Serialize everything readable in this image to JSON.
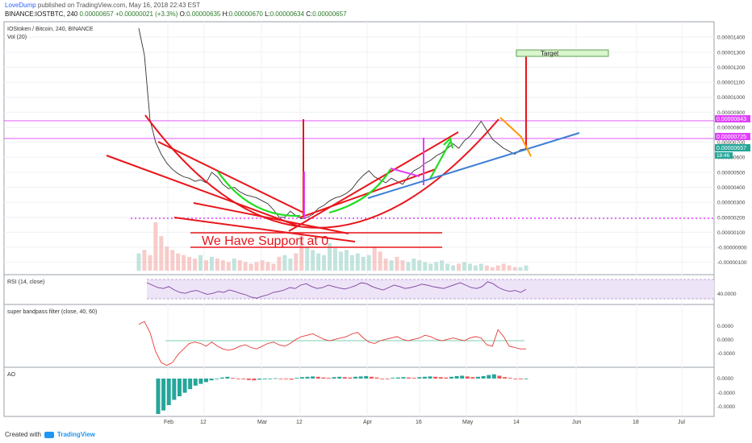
{
  "header": {
    "author": "LoveDump",
    "published_text": "published on TradingView.com, May 16, 2018 22:43 EST",
    "symbol": "BINANCE:IOSTBTC, 240",
    "last": "0.00000657",
    "change": "+0.00000021 (+3.3%)",
    "o_label": "O:",
    "o_value": "0.00000635",
    "h_label": "H:",
    "h_value": "0.00000670",
    "l_label": "L:",
    "l_value": "0.00000634",
    "c_label": "C:",
    "c_value": "0.00000657"
  },
  "main_pane": {
    "title": "IOStoken / Bitcoin, 240, BINANCE",
    "volume_label": "Vol (20)"
  },
  "annotations": {
    "target": "Target",
    "support": "We Have Support at 0"
  },
  "price_badges": {
    "upper": "0.00000843",
    "middle": "0.00000725",
    "last": "0.00000657",
    "countdown": "18:46"
  },
  "rsi_pane": {
    "title": "RSI (14, close)",
    "tick": "40.0000"
  },
  "bandpass_pane": {
    "title": "super bandpass filter (close, 40, 60)"
  },
  "ao_pane": {
    "title": "AO"
  },
  "footer": {
    "created_with": "Created with",
    "brand": "TradingView"
  },
  "colors": {
    "up": "#26a69a",
    "down": "#ef5350",
    "annotation_red": "#e8161b",
    "magenta": "#e040fb",
    "blue_trend": "#3d7fd6",
    "green_arrow": "#22dd22",
    "orange": "#ff9800",
    "rsi_line": "#7e3fa0",
    "bandpass": "#e53935"
  },
  "chart_data": [
    {
      "type": "line",
      "title": "IOStoken / Bitcoin, 240, BINANCE",
      "xlabel": "",
      "ylabel": "",
      "x_ticks": [
        "Feb",
        "12",
        "Mar",
        "12",
        "Apr",
        "16",
        "May",
        "14",
        "Jun",
        "18",
        "Jul"
      ],
      "y_ticks": [
        "0.00001400",
        "0.00001300",
        "0.00001200",
        "0.00001100",
        "0.00001000",
        "0.00000900",
        "0.00000800",
        "0.00000700",
        "0.00000600",
        "0.00000500",
        "0.00000400",
        "0.00000300",
        "0.00000200",
        "0.00000100",
        "-0.00000000",
        "-0.00000100"
      ],
      "ylim": [
        -1.5e-06,
        1.46e-05
      ],
      "grid": true,
      "series": [
        {
          "values": [
            1.46e-05,
            1.28e-05,
            8.5e-06,
            7e-06,
            6.2e-06,
            5.6e-06,
            5.2e-06,
            4.9e-06,
            4.7e-06,
            4.6e-06,
            4.4e-06,
            4.5e-06,
            4.3e-06,
            5e-06,
            4.7e-06,
            4.2e-06,
            3.9e-06,
            4e-06,
            3.7e-06,
            3.5e-06,
            3.4e-06,
            3.3e-06,
            3.1e-06,
            2.9e-06,
            2.5e-06,
            2e-06,
            2e-06,
            2.4e-06,
            2.1e-06,
            1.9e-06,
            2e-06,
            2.2e-06,
            2.6e-06,
            2.8e-06,
            3.1e-06,
            3.3e-06,
            3.4e-06,
            3.6e-06,
            3.9e-06,
            4.4e-06,
            4.8e-06,
            5.1e-06,
            4.7e-06,
            4.5e-06,
            4.3e-06,
            4.6e-06,
            4.4e-06,
            4.2e-06,
            4.7e-06,
            5.1e-06,
            5.3e-06,
            5.6e-06,
            5.8e-06,
            6.1e-06,
            6.3e-06,
            6.6e-06,
            6.9e-06,
            6.6e-06,
            7.1e-06,
            7.4e-06,
            7.9e-06,
            8.4e-06,
            7.8e-06,
            7.2e-06,
            6.9e-06,
            6.6e-06,
            6.4e-06,
            6.2e-06,
            6.5e-06,
            6.57e-06
          ]
        }
      ],
      "horizontal_lines": [
        8.43e-06,
        7.25e-06,
        1.9e-06
      ],
      "volume": [
        10,
        12,
        9,
        28,
        20,
        14,
        12,
        10,
        9,
        8,
        7,
        9,
        6,
        8,
        7,
        6,
        5,
        7,
        6,
        5,
        4,
        5,
        6,
        5,
        4,
        8,
        9,
        7,
        10,
        22,
        14,
        12,
        10,
        9,
        16,
        13,
        11,
        12,
        9,
        10,
        8,
        9,
        14,
        11,
        7,
        6,
        8,
        6,
        5,
        7,
        6,
        5,
        4,
        5,
        6,
        4,
        3,
        4,
        5,
        4,
        3,
        4,
        3,
        2,
        3,
        4,
        3,
        2,
        2,
        3
      ]
    },
    {
      "type": "line",
      "title": "RSI (14, close)",
      "y_ticks": [
        "40.0000"
      ],
      "series": [
        {
          "values": [
            60,
            55,
            50,
            48,
            52,
            45,
            40,
            38,
            42,
            44,
            40,
            36,
            38,
            42,
            40,
            45,
            42,
            38,
            35,
            30,
            28,
            32,
            35,
            40,
            42,
            45,
            50,
            48,
            55,
            58,
            52,
            48,
            50,
            55,
            52,
            49,
            47,
            50,
            54,
            60,
            58,
            52,
            48,
            45,
            50,
            55,
            52,
            48,
            50,
            53,
            57,
            55,
            52,
            50,
            48,
            52,
            56,
            60,
            55,
            50,
            48,
            52,
            62,
            58,
            50,
            45,
            42,
            44,
            40,
            46
          ]
        }
      ]
    },
    {
      "type": "line",
      "title": "super bandpass filter (close, 40, 60)",
      "y_ticks": [
        "0.0000",
        "0.0000",
        "-0.0000"
      ],
      "series": [
        {
          "values": [
            0.6,
            0.7,
            0.3,
            -0.4,
            -0.8,
            -0.9,
            -0.8,
            -0.5,
            -0.3,
            -0.1,
            -0.05,
            -0.1,
            -0.2,
            -0.05,
            -0.2,
            -0.3,
            -0.35,
            -0.3,
            -0.2,
            -0.15,
            -0.25,
            -0.3,
            -0.2,
            -0.1,
            -0.05,
            -0.15,
            -0.2,
            -0.1,
            0.05,
            0.15,
            0.2,
            0.25,
            0.15,
            0.05,
            0.0,
            0.05,
            0.1,
            0.15,
            0.25,
            0.3,
            0.1,
            -0.05,
            -0.1,
            0.0,
            0.05,
            0.1,
            0.15,
            0.05,
            0.0,
            0.05,
            0.1,
            0.2,
            0.15,
            0.05,
            0.0,
            0.05,
            0.1,
            0.05,
            0.0,
            0.1,
            0.15,
            0.1,
            -0.15,
            -0.2,
            0.4,
            0.15,
            -0.2,
            -0.25,
            -0.3,
            -0.3
          ]
        }
      ]
    },
    {
      "type": "bar",
      "title": "AO",
      "y_ticks": [
        "0.0000",
        "-0.0000",
        "-0.0000"
      ],
      "values": [
        -1.0,
        -0.9,
        -0.75,
        -0.6,
        -0.5,
        -0.4,
        -0.3,
        -0.2,
        -0.15,
        -0.1,
        -0.05,
        0.0,
        0.03,
        0.05,
        0.02,
        0.0,
        -0.02,
        -0.04,
        -0.05,
        -0.03,
        -0.02,
        -0.01,
        0.01,
        0.0,
        -0.01,
        -0.03,
        0.02,
        0.04,
        0.05,
        0.06,
        0.05,
        0.03,
        0.02,
        0.04,
        0.05,
        0.04,
        0.03,
        0.05,
        0.06,
        0.07,
        0.05,
        0.03,
        0.0,
        -0.01,
        0.02,
        0.03,
        0.04,
        0.03,
        0.02,
        0.04,
        0.05,
        0.06,
        0.05,
        0.04,
        0.03,
        0.05,
        0.07,
        0.08,
        0.06,
        0.04,
        0.05,
        0.07,
        0.1,
        0.12,
        0.08,
        0.04,
        0.02,
        0.0,
        -0.02,
        -0.01
      ]
    }
  ]
}
